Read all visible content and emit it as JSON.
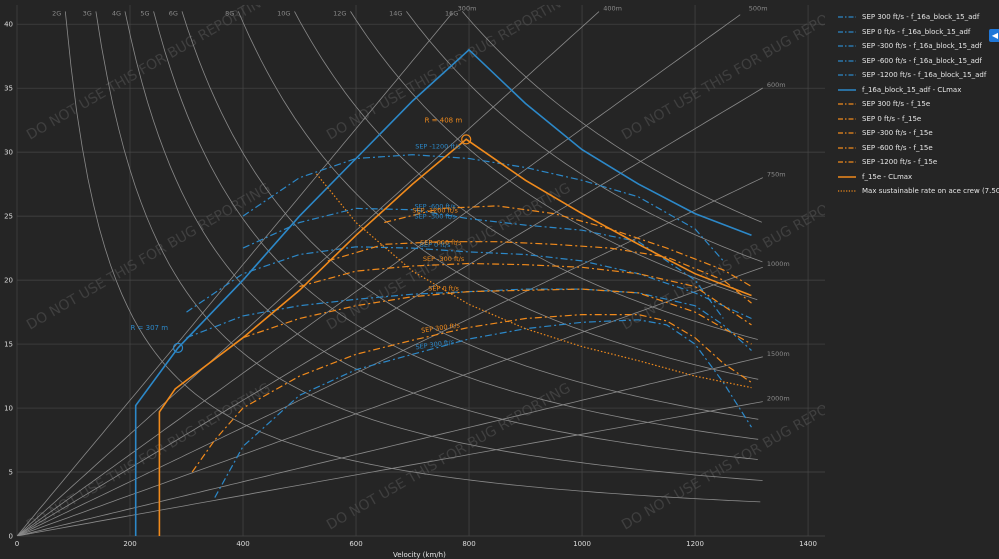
{
  "colors": {
    "f16": "#2c88c8",
    "f15": "#f08a1c",
    "grid": "#474747",
    "helper": "#8a8a8a",
    "watermark": "#555555"
  },
  "axes": {
    "xlabel": "Velocity (km/h)",
    "xlim": [
      0,
      1430
    ],
    "ylim": [
      0,
      41.5
    ],
    "xticks": [
      "0",
      "200",
      "400",
      "600",
      "800",
      "1000",
      "1200",
      "1400"
    ],
    "yticks": [
      "0",
      "5",
      "10",
      "15",
      "20",
      "25",
      "30",
      "35",
      "40"
    ]
  },
  "watermark": "DO NOT USE THIS FOR BUG REPORTING",
  "legend": [
    {
      "name": "SEP 300 ft/s - f_16a_block_15_adf",
      "color": "#2c88c8",
      "dash": "dashdot"
    },
    {
      "name": "SEP 0 ft/s - f_16a_block_15_adf",
      "color": "#2c88c8",
      "dash": "dashdot"
    },
    {
      "name": "SEP -300 ft/s - f_16a_block_15_adf",
      "color": "#2c88c8",
      "dash": "dashdot"
    },
    {
      "name": "SEP -600 ft/s - f_16a_block_15_adf",
      "color": "#2c88c8",
      "dash": "dashdot"
    },
    {
      "name": "SEP -1200 ft/s - f_16a_block_15_adf",
      "color": "#2c88c8",
      "dash": "dashdot"
    },
    {
      "name": "f_16a_block_15_adf - CLmax",
      "color": "#2c88c8",
      "dash": "solid"
    },
    {
      "name": "SEP 300 ft/s - f_15e",
      "color": "#f08a1c",
      "dash": "dashdot"
    },
    {
      "name": "SEP 0 ft/s - f_15e",
      "color": "#f08a1c",
      "dash": "dashdot"
    },
    {
      "name": "SEP -300 ft/s - f_15e",
      "color": "#f08a1c",
      "dash": "dashdot"
    },
    {
      "name": "SEP -600 ft/s - f_15e",
      "color": "#f08a1c",
      "dash": "dashdot"
    },
    {
      "name": "SEP -1200 ft/s - f_15e",
      "color": "#f08a1c",
      "dash": "dashdot"
    },
    {
      "name": "f_15e - CLmax",
      "color": "#f08a1c",
      "dash": "solid"
    },
    {
      "name": "Max sustainable rate on ace crew (7.5G)",
      "color": "#f08a1c",
      "dash": "dot"
    }
  ],
  "annotations": {
    "f16_radius": "R = 307 m",
    "f15_radius": "R = 408 m",
    "f16_sep_labels": [
      "SEP -1200 ft/s",
      "SEP -600 ft/s",
      "SEP -300 ft/s",
      "SEP 0 ft/s",
      "SEP 300 ft/s"
    ],
    "f15_sep_labels": [
      "SEP -1200 ft/s",
      "SEP -600 ft/s",
      "SEP -300 ft/s",
      "SEP 0 ft/s",
      "SEP 300 ft/s"
    ]
  },
  "chart_data": {
    "type": "line",
    "xlabel": "Velocity (km/h)",
    "ylabel": "",
    "xlim": [
      0,
      1430
    ],
    "ylim": [
      0,
      41.5
    ],
    "grid": true,
    "legend_position": "right",
    "g_lines": [
      {
        "label": "2G",
        "g": 2
      },
      {
        "label": "3G",
        "g": 3
      },
      {
        "label": "4G",
        "g": 4
      },
      {
        "label": "5G",
        "g": 5
      },
      {
        "label": "6G",
        "g": 6
      },
      {
        "label": "8G",
        "g": 8
      },
      {
        "label": "10G",
        "g": 10
      },
      {
        "label": "12G",
        "g": 12
      },
      {
        "label": "14G",
        "g": 14
      },
      {
        "label": "16G",
        "g": 16
      }
    ],
    "radius_lines": [
      {
        "label": "300m",
        "r": 300
      },
      {
        "label": "400m",
        "r": 400
      },
      {
        "label": "500m",
        "r": 500
      },
      {
        "label": "600m",
        "r": 600
      },
      {
        "label": "750m",
        "r": 750
      },
      {
        "label": "1000m",
        "r": 1000
      },
      {
        "label": "1500m",
        "r": 1500
      },
      {
        "label": "2000m",
        "r": 2000
      }
    ],
    "series": [
      {
        "name": "SEP 300 ft/s - f_16a_block_15_adf",
        "aircraft": "f16",
        "style": "dashdot",
        "x": [
          350,
          400,
          500,
          600,
          700,
          800,
          900,
          1000,
          1100,
          1150,
          1200,
          1250,
          1300
        ],
        "y": [
          3,
          7,
          11,
          13,
          14.2,
          15.4,
          16.2,
          16.7,
          16.9,
          16.5,
          15,
          12,
          8.5
        ]
      },
      {
        "name": "SEP 0 ft/s - f_16a_block_15_adf",
        "aircraft": "f16",
        "style": "dashdot",
        "x": [
          300,
          400,
          500,
          600,
          700,
          800,
          900,
          1000,
          1100,
          1200,
          1250,
          1300
        ],
        "y": [
          15.5,
          17.2,
          18,
          18.5,
          18.9,
          19.1,
          19.3,
          19.3,
          19,
          18,
          16.5,
          14.5
        ]
      },
      {
        "name": "SEP -300 ft/s - f_16a_block_15_adf",
        "aircraft": "f16",
        "style": "dashdot",
        "x": [
          300,
          400,
          500,
          600,
          700,
          800,
          900,
          1000,
          1100,
          1200,
          1300
        ],
        "y": [
          17.5,
          20.5,
          22,
          22.6,
          22.5,
          22.2,
          22,
          21.5,
          20.5,
          19,
          17
        ]
      },
      {
        "name": "SEP -600 ft/s - f_16a_block_15_adf",
        "aircraft": "f16",
        "style": "dashdot",
        "x": [
          400,
          500,
          600,
          700,
          800,
          900,
          1000,
          1100,
          1200,
          1250
        ],
        "y": [
          22.5,
          24.5,
          25.6,
          25.5,
          24.8,
          24.3,
          23.9,
          23,
          20,
          17
        ]
      },
      {
        "name": "SEP -1200 ft/s - f_16a_block_15_adf",
        "aircraft": "f16",
        "style": "dashdot",
        "x": [
          400,
          500,
          600,
          700,
          800,
          900,
          1000,
          1100,
          1200,
          1250
        ],
        "y": [
          25,
          28,
          29.5,
          29.8,
          29.5,
          28.8,
          27.8,
          26.5,
          24,
          21.5
        ]
      },
      {
        "name": "f_16a_block_15_adf - CLmax",
        "aircraft": "f16",
        "style": "solid",
        "x": [
          210,
          210,
          285,
          400,
          500,
          600,
          700,
          800,
          900,
          1000,
          1100,
          1200,
          1300
        ],
        "y": [
          0,
          10.2,
          14.7,
          20,
          25,
          29.5,
          34,
          38,
          33.8,
          30.2,
          27.5,
          25.2,
          23.5
        ]
      },
      {
        "name": "SEP 300 ft/s - f_15e",
        "aircraft": "f15",
        "style": "dashdot",
        "x": [
          310,
          350,
          400,
          500,
          600,
          700,
          800,
          900,
          1000,
          1100,
          1150,
          1200,
          1250,
          1300
        ],
        "y": [
          5,
          7.5,
          10,
          12.5,
          14.2,
          15.3,
          16.3,
          17,
          17.3,
          17.3,
          16.8,
          15.5,
          13.5,
          12
        ]
      },
      {
        "name": "SEP 0 ft/s - f_15e",
        "aircraft": "f15",
        "style": "dashdot",
        "x": [
          400,
          500,
          600,
          700,
          800,
          900,
          1000,
          1100,
          1200,
          1300
        ],
        "y": [
          15.5,
          17,
          18,
          18.7,
          19.1,
          19.2,
          19.3,
          19,
          17.5,
          15
        ]
      },
      {
        "name": "SEP -300 ft/s - f_15e",
        "aircraft": "f15",
        "style": "dashdot",
        "x": [
          500,
          600,
          700,
          800,
          900,
          1000,
          1100,
          1200,
          1300
        ],
        "y": [
          19.5,
          20.7,
          21.1,
          21.3,
          21.2,
          21,
          20.5,
          19.5,
          16.5
        ]
      },
      {
        "name": "SEP -600 ft/s - f_15e",
        "aircraft": "f15",
        "style": "dashdot",
        "x": [
          550,
          650,
          750,
          850,
          950,
          1050,
          1150,
          1250,
          1300
        ],
        "y": [
          21.5,
          22.8,
          23,
          23,
          22.8,
          22.5,
          21.8,
          20,
          18.2
        ]
      },
      {
        "name": "SEP -1200 ft/s - f_15e",
        "aircraft": "f15",
        "style": "dashdot",
        "x": [
          650,
          750,
          850,
          950,
          1050,
          1150,
          1250,
          1300
        ],
        "y": [
          24.5,
          25.6,
          25.8,
          25.2,
          24,
          22.5,
          20.8,
          19.5
        ]
      },
      {
        "name": "f_15e - CLmax",
        "aircraft": "f15",
        "style": "solid",
        "x": [
          252,
          252,
          280,
          400,
          500,
          600,
          700,
          795,
          900,
          1000,
          1100,
          1200,
          1300
        ],
        "y": [
          0,
          9.7,
          11.5,
          15.5,
          19.2,
          23.5,
          27.5,
          31,
          27.8,
          25.2,
          22.8,
          20.5,
          18.8
        ]
      },
      {
        "name": "Max sustainable rate on ace crew (7.5G)",
        "aircraft": "f15",
        "style": "dot",
        "x": [
          530,
          600,
          700,
          800,
          900,
          1000,
          1100,
          1200,
          1300
        ],
        "y": [
          28.3,
          24.5,
          20.7,
          18.1,
          16.2,
          14.8,
          13.7,
          12.5,
          11.6
        ]
      }
    ],
    "markers": [
      {
        "aircraft": "f16",
        "x": 285,
        "y": 14.7,
        "label": "R = 307 m"
      },
      {
        "aircraft": "f15",
        "x": 795,
        "y": 31,
        "label": "R = 408 m"
      }
    ]
  }
}
